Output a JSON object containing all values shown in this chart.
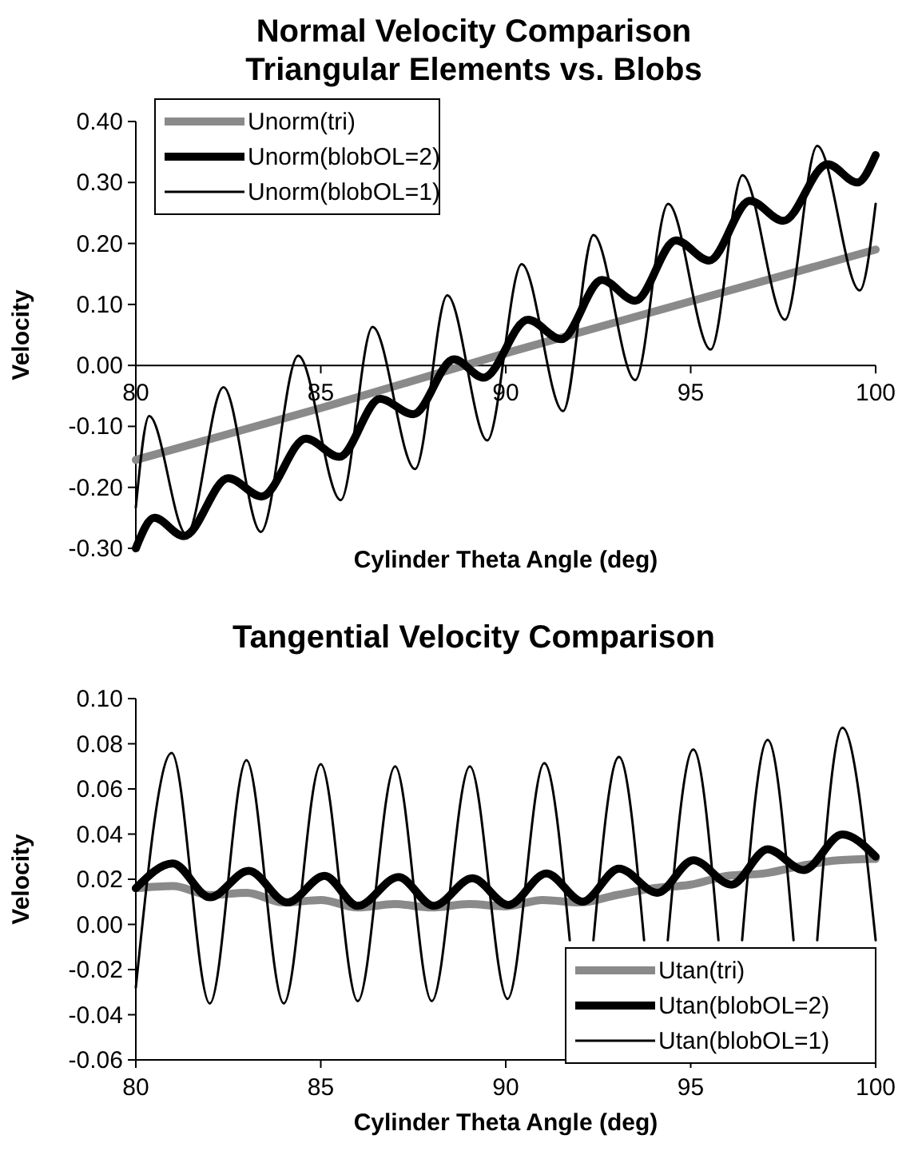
{
  "chart_data": [
    {
      "type": "line",
      "title": "Normal Velocity Comparison",
      "subtitle": "Triangular Elements vs. Blobs",
      "xlabel": "Cylinder Theta Angle (deg)",
      "ylabel": "Velocity",
      "xlim": [
        80,
        100
      ],
      "xticks": [
        80,
        85,
        90,
        95,
        100
      ],
      "ylim": [
        -0.3,
        0.4
      ],
      "yticks": [
        {
          "value": -0.3,
          "label": "-0.30"
        },
        {
          "value": -0.2,
          "label": "-0.20"
        },
        {
          "value": -0.1,
          "label": "-0.10"
        },
        {
          "value": 0,
          "label": "0.00"
        },
        {
          "value": 0.1,
          "label": "0.10"
        },
        {
          "value": 0.2,
          "label": "0.20"
        },
        {
          "value": 0.3,
          "label": "0.30"
        },
        {
          "value": 0.4,
          "label": "0.40"
        }
      ],
      "grid": false,
      "legend": "top left",
      "marker": "none",
      "line_style": "solid",
      "series": [
        {
          "name": "Unorm(tri)",
          "color": "#8a8a8a",
          "x": [
            80,
            85,
            90,
            95,
            100
          ],
          "values": [
            -0.155,
            -0.07,
            0.02,
            0.105,
            0.19
          ]
        },
        {
          "name": "Unorm(blobOL=2)",
          "color": "#000000",
          "x": [
            80,
            80.5,
            81.3,
            82.5,
            83.4,
            84.6,
            85.5,
            86.6,
            87.5,
            88.6,
            89.4,
            90.6,
            91.5,
            92.6,
            93.5,
            94.6,
            95.5,
            96.6,
            97.5,
            98.7,
            99.5,
            100
          ],
          "values": [
            -0.3,
            -0.25,
            -0.28,
            -0.185,
            -0.215,
            -0.12,
            -0.15,
            -0.055,
            -0.08,
            0.01,
            -0.02,
            0.075,
            0.043,
            0.14,
            0.106,
            0.205,
            0.172,
            0.27,
            0.237,
            0.33,
            0.3,
            0.345
          ]
        },
        {
          "name": "Unorm(blobOL=1)",
          "color": "#000000",
          "x": [
            80,
            80.36,
            81.37,
            82.37,
            83.38,
            84.39,
            85.54,
            86.4,
            87.55,
            88.42,
            89.5,
            90.43,
            91.55,
            92.37,
            93.5,
            94.39,
            95.54,
            96.4,
            97.55,
            98.42,
            99.57,
            100
          ],
          "values": [
            -0.233,
            -0.083,
            -0.277,
            -0.036,
            -0.273,
            0.016,
            -0.221,
            0.063,
            -0.17,
            0.115,
            -0.123,
            0.166,
            -0.075,
            0.214,
            -0.024,
            0.265,
            0.026,
            0.312,
            0.075,
            0.36,
            0.123,
            0.265
          ]
        }
      ]
    },
    {
      "type": "line",
      "title": "Tangential Velocity Comparison",
      "xlabel": "Cylinder Theta Angle (deg)",
      "ylabel": "Velocity",
      "xlim": [
        80,
        100
      ],
      "xticks": [
        80,
        85,
        90,
        95,
        100
      ],
      "ylim": [
        -0.06,
        0.1
      ],
      "yticks": [
        {
          "value": -0.06,
          "label": "-0.06"
        },
        {
          "value": -0.04,
          "label": "-0.04"
        },
        {
          "value": -0.02,
          "label": "-0.02"
        },
        {
          "value": 0,
          "label": "0.00"
        },
        {
          "value": 0.02,
          "label": "0.02"
        },
        {
          "value": 0.04,
          "label": "0.04"
        },
        {
          "value": 0.06,
          "label": "0.06"
        },
        {
          "value": 0.08,
          "label": "0.08"
        },
        {
          "value": 0.1,
          "label": "0.10"
        }
      ],
      "grid": false,
      "legend": "bottom right",
      "marker": "none",
      "line_style": "solid",
      "series": [
        {
          "name": "Utan(tri)",
          "color": "#8a8a8a",
          "x": [
            80,
            81,
            82,
            83,
            84,
            85,
            86,
            87,
            88,
            89,
            90,
            91,
            92,
            93,
            94,
            95,
            96,
            97,
            98,
            99,
            100
          ],
          "values": [
            0.016,
            0.017,
            0.013,
            0.014,
            0.0097,
            0.0108,
            0.0075,
            0.009,
            0.0075,
            0.009,
            0.008,
            0.0108,
            0.0097,
            0.013,
            0.016,
            0.0176,
            0.0215,
            0.0226,
            0.026,
            0.0284,
            0.029
          ]
        },
        {
          "name": "Utan(blobOL=2)",
          "color": "#000000",
          "x": [
            80,
            81,
            82,
            83.05,
            84.1,
            85.1,
            86,
            87.1,
            88.05,
            89.1,
            90.07,
            91.1,
            92.08,
            93.06,
            94.1,
            95.07,
            96.1,
            97.08,
            98.05,
            99.1,
            100
          ],
          "values": [
            0.016,
            0.027,
            0.012,
            0.0237,
            0.0097,
            0.0215,
            0.0082,
            0.021,
            0.0082,
            0.0204,
            0.0086,
            0.0226,
            0.0101,
            0.0247,
            0.014,
            0.0284,
            0.0176,
            0.0333,
            0.0241,
            0.0398,
            0.03
          ]
        },
        {
          "name": "Utan(blobOL=1)",
          "color": "#000000",
          "x": [
            80,
            80.97,
            82,
            82.99,
            84,
            85,
            86,
            87.01,
            88,
            89.03,
            90.05,
            91.04,
            91.73,
            92.05,
            92.37,
            93.06,
            93.74,
            94.06,
            94.38,
            95.07,
            95.75,
            96.07,
            96.39,
            97.08,
            97.78,
            98.1,
            98.42,
            99.1,
            100
          ],
          "values": [
            -0.028,
            0.0759,
            -0.035,
            0.0727,
            -0.035,
            0.071,
            -0.034,
            0.07,
            -0.034,
            0.07,
            -0.033,
            0.0714,
            -0.007,
            null,
            -0.007,
            0.0742,
            -0.007,
            null,
            -0.007,
            0.0774,
            -0.007,
            null,
            -0.007,
            0.0817,
            -0.007,
            null,
            -0.007,
            0.0871,
            -0.007
          ]
        }
      ]
    }
  ]
}
